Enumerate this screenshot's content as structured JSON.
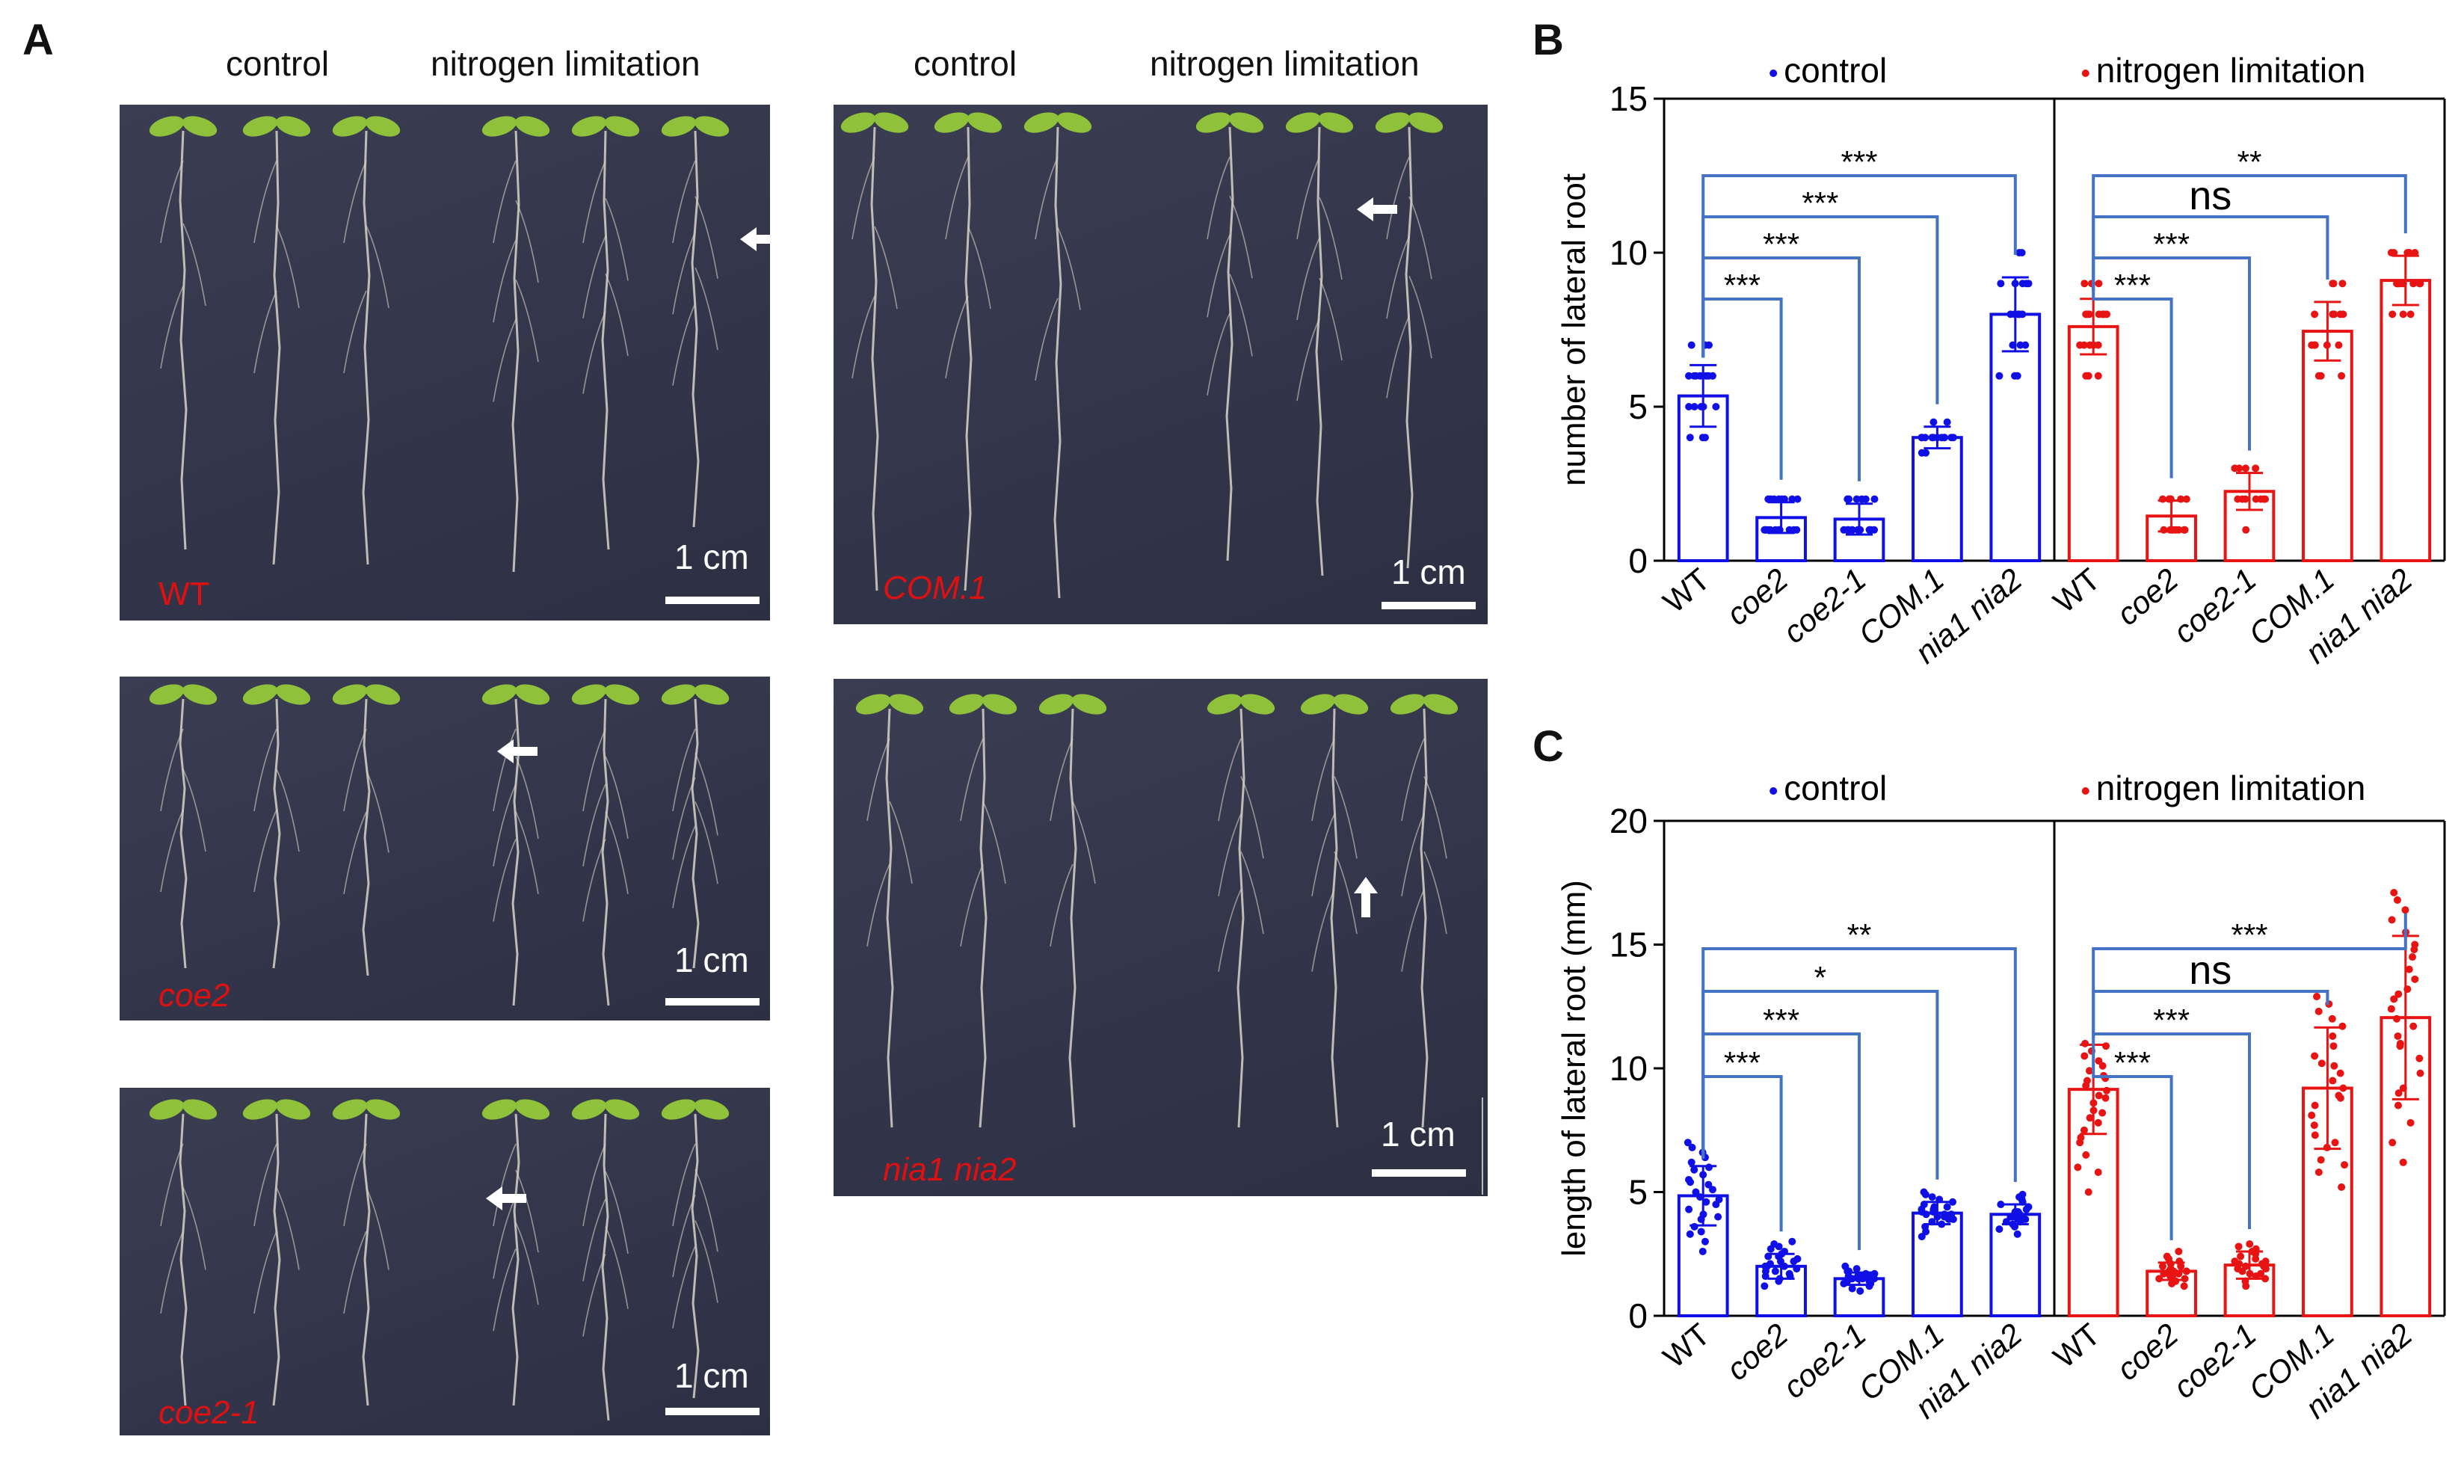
{
  "panel_labels": {
    "a": "A",
    "b": "B",
    "c": "C"
  },
  "photo_headers": {
    "left_control": "control",
    "left_nitrogen": "nitrogen limitation",
    "right_control": "control",
    "right_nitrogen": "nitrogen limitation"
  },
  "photos": [
    {
      "genotype": "WT",
      "scale": "1 cm",
      "italic": false
    },
    {
      "genotype": "coe2",
      "scale": "1 cm",
      "italic": true
    },
    {
      "genotype": "coe2-1",
      "scale": "1 cm",
      "italic": true
    },
    {
      "genotype": "COM.1",
      "scale": "1 cm",
      "italic": true
    },
    {
      "genotype": "nia1 nia2",
      "scale": "1 cm",
      "italic": true
    }
  ],
  "colors": {
    "control": "#1010e6",
    "nitrogen": "#e81414",
    "bracket": "#4472c4",
    "photo_bg": "#35374c",
    "seedling": "#d8d3c8",
    "leaf": "#8fc23a"
  },
  "chart_data": [
    {
      "id": "B",
      "type": "bar",
      "ylabel": "number of lateral root",
      "ylim": [
        0,
        15
      ],
      "yticks": [
        0,
        5,
        10,
        15
      ],
      "legend": [
        "control",
        "nitrogen limitation"
      ],
      "groups": [
        "control",
        "nitrogen limitation"
      ],
      "categories": [
        "WT",
        "coe2",
        "coe2-1",
        "COM.1",
        "nia1 nia2"
      ],
      "series": [
        {
          "name": "control",
          "values": [
            5.35,
            1.4,
            1.35,
            4.0,
            8.0
          ],
          "sd": [
            1.0,
            0.5,
            0.5,
            0.35,
            1.2
          ],
          "points": [
            [
              4,
              4,
              4,
              5,
              5,
              5,
              5,
              5,
              6,
              6,
              6,
              6,
              6,
              6,
              6,
              6,
              7,
              7,
              7
            ],
            [
              1,
              1,
              1,
              1,
              1,
              1,
              1,
              1,
              1,
              1,
              1,
              2,
              2,
              2,
              2,
              2,
              2,
              2,
              2
            ],
            [
              1,
              1,
              1,
              1,
              1,
              1,
              1,
              1,
              1,
              1,
              1,
              1,
              2,
              2,
              2,
              2,
              2,
              2
            ],
            [
              3.5,
              3.5,
              4,
              4,
              4,
              4,
              4,
              4,
              4,
              4,
              4,
              4,
              4,
              4.5,
              4.5
            ],
            [
              6,
              6,
              6,
              7,
              7,
              7,
              8,
              8,
              8,
              8,
              8,
              8,
              9,
              9,
              9,
              9,
              9,
              10,
              10
            ]
          ]
        },
        {
          "name": "nitrogen limitation",
          "values": [
            7.6,
            1.45,
            2.25,
            7.45,
            9.1
          ],
          "sd": [
            0.9,
            0.5,
            0.6,
            0.95,
            0.8
          ],
          "points": [
            [
              6,
              6,
              6,
              7,
              7,
              7,
              7,
              7,
              7,
              8,
              8,
              8,
              8,
              8,
              8,
              8,
              9,
              9,
              9
            ],
            [
              1,
              1,
              1,
              1,
              1,
              1,
              1,
              1,
              2,
              2,
              2,
              2,
              2,
              2,
              2
            ],
            [
              1,
              2,
              2,
              2,
              2,
              2,
              2,
              2,
              3,
              3,
              3,
              3
            ],
            [
              6,
              6,
              6,
              7,
              7,
              7,
              7,
              7,
              7,
              8,
              8,
              8,
              8,
              8,
              9,
              9,
              9
            ],
            [
              8,
              8,
              8,
              9,
              9,
              9,
              9,
              9,
              9,
              9,
              9,
              10,
              10,
              10,
              10,
              10
            ]
          ]
        }
      ],
      "significance": [
        {
          "group": "control",
          "to": "coe2",
          "label": "***"
        },
        {
          "group": "control",
          "to": "coe2-1",
          "label": "***"
        },
        {
          "group": "control",
          "to": "COM.1",
          "label": "***"
        },
        {
          "group": "control",
          "to": "nia1 nia2",
          "label": "***"
        },
        {
          "group": "nitrogen limitation",
          "to": "coe2",
          "label": "***"
        },
        {
          "group": "nitrogen limitation",
          "to": "coe2-1",
          "label": "***"
        },
        {
          "group": "nitrogen limitation",
          "to": "COM.1",
          "label": "ns"
        },
        {
          "group": "nitrogen limitation",
          "to": "nia1 nia2",
          "label": "**"
        }
      ]
    },
    {
      "id": "C",
      "type": "bar",
      "ylabel": "length of lateral root (mm)",
      "ylim": [
        0,
        20
      ],
      "yticks": [
        0,
        5,
        10,
        15,
        20
      ],
      "legend": [
        "control",
        "nitrogen limitation"
      ],
      "groups": [
        "control",
        "nitrogen limitation"
      ],
      "categories": [
        "WT",
        "coe2",
        "coe2-1",
        "COM.1",
        "nia1 nia2"
      ],
      "series": [
        {
          "name": "control",
          "values": [
            4.85,
            2.0,
            1.5,
            4.15,
            4.1
          ],
          "sd": [
            1.2,
            0.5,
            0.25,
            0.45,
            0.4
          ],
          "points": [
            [
              2.6,
              3.0,
              3.3,
              3.6,
              3.9,
              4.1,
              4.3,
              4.5,
              4.6,
              4.8,
              5.0,
              5.1,
              5.3,
              5.5,
              5.7,
              5.9,
              6.0,
              6.2,
              6.4,
              6.6,
              6.8,
              7.0,
              4.0,
              4.7,
              5.4,
              3.4
            ],
            [
              1.2,
              1.4,
              1.5,
              1.6,
              1.7,
              1.8,
              1.9,
              2.0,
              2.0,
              2.1,
              2.2,
              2.3,
              2.4,
              2.5,
              2.6,
              2.7,
              2.8,
              2.9,
              3.0,
              1.8,
              2.2,
              2.4,
              1.6,
              2.0
            ],
            [
              1.0,
              1.1,
              1.2,
              1.3,
              1.3,
              1.4,
              1.4,
              1.5,
              1.5,
              1.5,
              1.6,
              1.6,
              1.6,
              1.7,
              1.7,
              1.8,
              1.8,
              1.9,
              2.0,
              1.5,
              1.4,
              1.6
            ],
            [
              3.2,
              3.4,
              3.6,
              3.7,
              3.8,
              3.9,
              4.0,
              4.0,
              4.1,
              4.1,
              4.2,
              4.2,
              4.3,
              4.3,
              4.4,
              4.5,
              4.6,
              4.7,
              4.8,
              4.9,
              5.0,
              4.1,
              4.4,
              3.9
            ],
            [
              3.3,
              3.5,
              3.6,
              3.7,
              3.8,
              3.9,
              3.9,
              4.0,
              4.0,
              4.1,
              4.1,
              4.2,
              4.2,
              4.3,
              4.4,
              4.5,
              4.6,
              4.7,
              4.8,
              4.9,
              4.0,
              4.2,
              3.8
            ]
          ]
        },
        {
          "name": "nitrogen limitation",
          "values": [
            9.15,
            1.8,
            2.05,
            9.2,
            12.05
          ],
          "sd": [
            1.8,
            0.35,
            0.55,
            2.45,
            3.3
          ],
          "points": [
            [
              5.0,
              5.8,
              6.5,
              7.0,
              7.5,
              7.8,
              8.0,
              8.3,
              8.6,
              8.9,
              9.1,
              9.3,
              9.5,
              9.7,
              9.9,
              10.1,
              10.3,
              10.5,
              10.7,
              10.9,
              11.0,
              8.2,
              8.8,
              9.6,
              7.2,
              6.0
            ],
            [
              1.2,
              1.3,
              1.4,
              1.5,
              1.6,
              1.6,
              1.7,
              1.7,
              1.8,
              1.8,
              1.9,
              1.9,
              2.0,
              2.0,
              2.1,
              2.2,
              2.3,
              2.4,
              2.6,
              1.7,
              1.8,
              1.5
            ],
            [
              1.2,
              1.4,
              1.5,
              1.6,
              1.7,
              1.8,
              1.9,
              2.0,
              2.0,
              2.1,
              2.2,
              2.3,
              2.4,
              2.5,
              2.6,
              2.7,
              2.8,
              2.9,
              2.2,
              1.9,
              2.1,
              1.7
            ],
            [
              5.2,
              5.8,
              6.3,
              6.8,
              7.3,
              7.7,
              8.1,
              8.5,
              8.9,
              9.2,
              9.5,
              9.8,
              10.1,
              10.5,
              10.9,
              11.3,
              11.7,
              12.0,
              12.3,
              12.6,
              12.9,
              8.8,
              10.2,
              7.0,
              6.1
            ],
            [
              6.2,
              7.0,
              7.8,
              8.5,
              9.2,
              9.8,
              10.4,
              10.9,
              11.3,
              11.7,
              12.0,
              12.4,
              12.8,
              13.2,
              13.6,
              14.0,
              14.5,
              15.0,
              15.5,
              16.0,
              16.4,
              16.8,
              17.1,
              11.0,
              13.0,
              9.0,
              14.8
            ]
          ]
        }
      ],
      "significance": [
        {
          "group": "control",
          "to": "coe2",
          "label": "***"
        },
        {
          "group": "control",
          "to": "coe2-1",
          "label": "***"
        },
        {
          "group": "control",
          "to": "COM.1",
          "label": "*"
        },
        {
          "group": "control",
          "to": "nia1 nia2",
          "label": "**"
        },
        {
          "group": "nitrogen limitation",
          "to": "coe2",
          "label": "***"
        },
        {
          "group": "nitrogen limitation",
          "to": "coe2-1",
          "label": "***"
        },
        {
          "group": "nitrogen limitation",
          "to": "COM.1",
          "label": "ns"
        },
        {
          "group": "nitrogen limitation",
          "to": "nia1 nia2",
          "label": "***"
        }
      ]
    }
  ]
}
